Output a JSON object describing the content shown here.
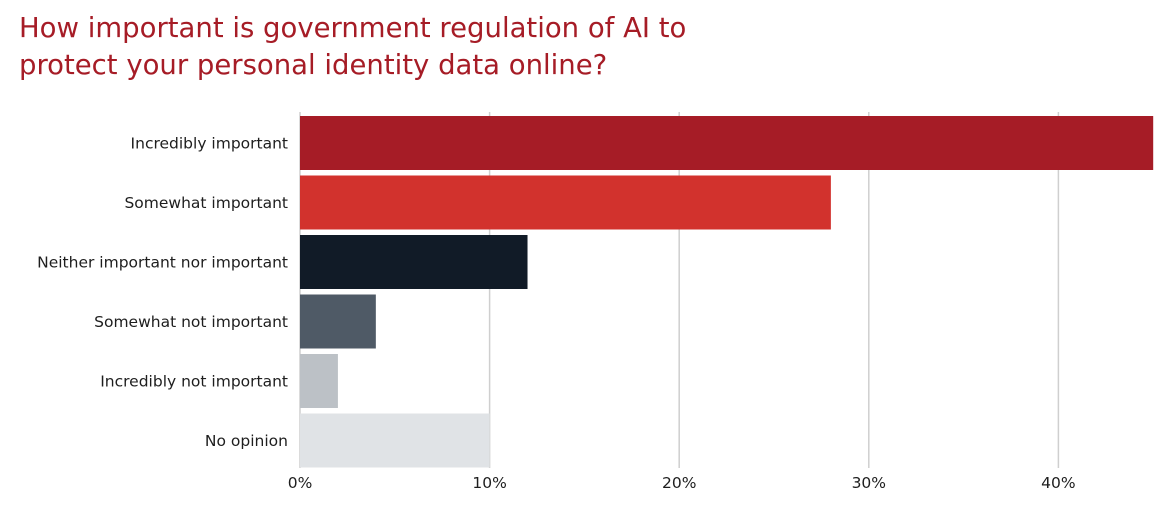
{
  "chart_data": {
    "type": "bar",
    "orientation": "horizontal",
    "title": "How important is government regulation of AI to protect your personal identity data online?",
    "title_lines": [
      "How important is government regulation of AI to",
      "protect your personal identity data online?"
    ],
    "categories": [
      "Incredibly important",
      "Somewhat important",
      "Neither important nor important",
      "Somewhat not important",
      "Incredibly not important",
      "No opinion"
    ],
    "values": [
      45,
      28,
      12,
      4,
      2,
      10
    ],
    "colors": [
      "#a61c26",
      "#d2322d",
      "#111b27",
      "#4f5a66",
      "#bcc1c6",
      "#e0e3e6"
    ],
    "xlim": [
      0,
      45
    ],
    "xticks": [
      0,
      10,
      20,
      30,
      40
    ],
    "xtick_labels": [
      "0%",
      "10%",
      "20%",
      "30%",
      "40%"
    ],
    "xlabel": "",
    "ylabel": "",
    "grid": true,
    "legend": "none"
  }
}
